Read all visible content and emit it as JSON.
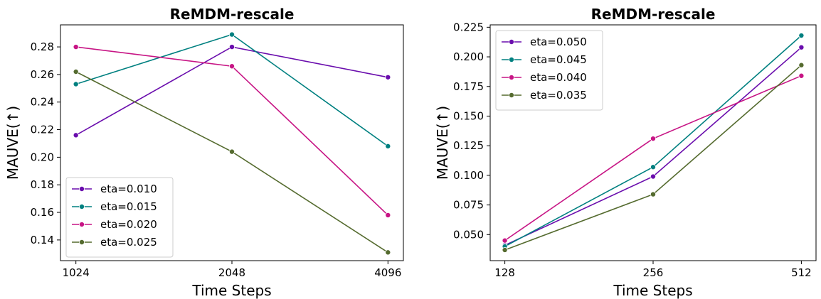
{
  "chart_data": [
    {
      "type": "line",
      "title": "ReMDM-rescale",
      "xlabel": "Time Steps",
      "ylabel": "MAUVE(↑)",
      "categories": [
        "1024",
        "2048",
        "4096"
      ],
      "x": [
        1024,
        2048,
        4096
      ],
      "ylim": [
        0.125,
        0.296
      ],
      "yticks": [
        0.14,
        0.16,
        0.18,
        0.2,
        0.22,
        0.24,
        0.26,
        0.28
      ],
      "ytick_labels": [
        "0.14",
        "0.16",
        "0.18",
        "0.20",
        "0.22",
        "0.24",
        "0.26",
        "0.28"
      ],
      "legend_position": "lower-left",
      "grid": false,
      "series": [
        {
          "name": "eta=0.010",
          "color": "#6a0dad",
          "values": [
            0.216,
            0.28,
            0.258
          ]
        },
        {
          "name": "eta=0.015",
          "color": "#008080",
          "values": [
            0.253,
            0.289,
            0.208
          ]
        },
        {
          "name": "eta=0.020",
          "color": "#c71585",
          "values": [
            0.28,
            0.266,
            0.158
          ]
        },
        {
          "name": "eta=0.025",
          "color": "#556b2f",
          "values": [
            0.262,
            0.204,
            0.131
          ]
        }
      ]
    },
    {
      "type": "line",
      "title": "ReMDM-rescale",
      "xlabel": "Time Steps",
      "ylabel": "MAUVE(↑)",
      "categories": [
        "128",
        "256",
        "512"
      ],
      "x": [
        128,
        256,
        512
      ],
      "ylim": [
        0.028,
        0.227
      ],
      "yticks": [
        0.05,
        0.075,
        0.1,
        0.125,
        0.15,
        0.175,
        0.2,
        0.225
      ],
      "ytick_labels": [
        "0.050",
        "0.075",
        "0.100",
        "0.125",
        "0.150",
        "0.175",
        "0.200",
        "0.225"
      ],
      "legend_position": "upper-left",
      "grid": false,
      "series": [
        {
          "name": "eta=0.050",
          "color": "#6a0dad",
          "values": [
            0.041,
            0.099,
            0.208
          ]
        },
        {
          "name": "eta=0.045",
          "color": "#008080",
          "values": [
            0.04,
            0.107,
            0.218
          ]
        },
        {
          "name": "eta=0.040",
          "color": "#c71585",
          "values": [
            0.045,
            0.131,
            0.184
          ]
        },
        {
          "name": "eta=0.035",
          "color": "#556b2f",
          "values": [
            0.037,
            0.084,
            0.193
          ]
        }
      ]
    }
  ]
}
